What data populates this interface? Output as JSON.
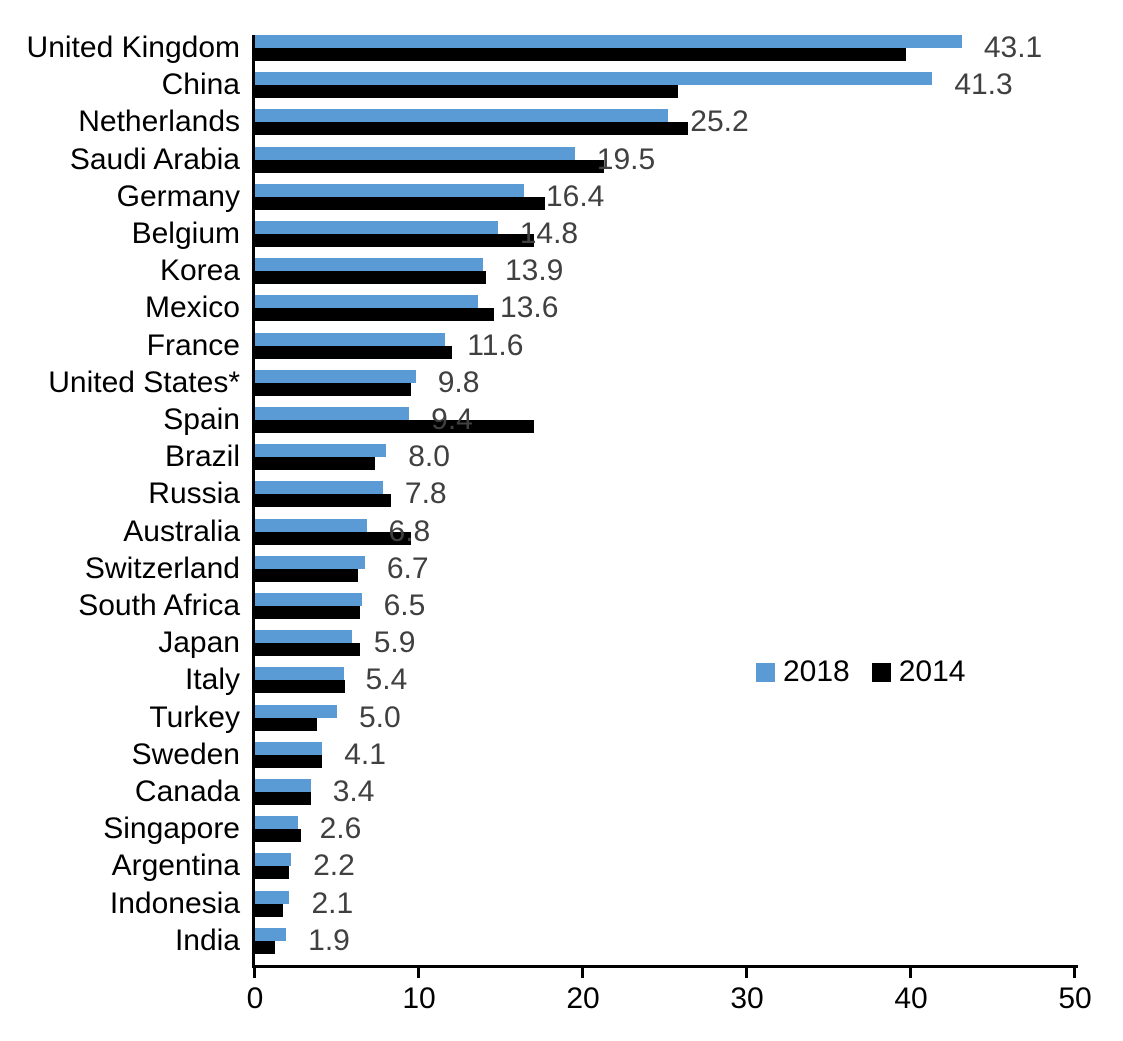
{
  "chart_data": {
    "type": "bar",
    "orientation": "horizontal",
    "title": "",
    "xlabel": "",
    "ylabel": "",
    "grid": false,
    "legend_position": "middle-right",
    "xlim": [
      0,
      50
    ],
    "x_ticks": [
      "0",
      "10",
      "20",
      "30",
      "40",
      "50"
    ],
    "value_label_color": "#404040",
    "axis_color": "#000000",
    "categories": [
      "United Kingdom",
      "China",
      "Netherlands",
      "Saudi Arabia",
      "Germany",
      "Belgium",
      "Korea",
      "Mexico",
      "France",
      "United States*",
      "Spain",
      "Brazil",
      "Russia",
      "Australia",
      "Switzerland",
      "South Africa",
      "Japan",
      "Italy",
      "Turkey",
      "Sweden",
      "Canada",
      "Singapore",
      "Argentina",
      "Indonesia",
      "India"
    ],
    "series": [
      {
        "name": "2018",
        "color": "#5B9BD5",
        "data_labels": true,
        "values": [
          43.1,
          41.3,
          25.2,
          19.5,
          16.4,
          14.8,
          13.9,
          13.6,
          11.6,
          9.8,
          9.4,
          8.0,
          7.8,
          6.8,
          6.7,
          6.5,
          5.9,
          5.4,
          5.0,
          4.1,
          3.4,
          2.6,
          2.2,
          2.1,
          1.9
        ]
      },
      {
        "name": "2014",
        "color": "#000000",
        "data_labels": false,
        "values": [
          39.7,
          25.8,
          26.4,
          21.3,
          17.7,
          17.0,
          14.1,
          14.6,
          12.0,
          9.5,
          17.0,
          7.3,
          8.3,
          9.5,
          6.3,
          6.4,
          6.4,
          5.5,
          3.8,
          4.1,
          3.4,
          2.8,
          2.1,
          1.7,
          1.2
        ]
      }
    ]
  }
}
